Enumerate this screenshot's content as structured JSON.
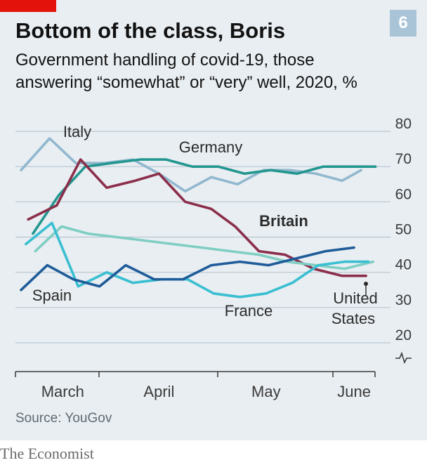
{
  "header": {
    "chart_number": "6",
    "title": "Bottom of the class, Boris",
    "subtitle": "Government handling of covid-19, those answering “somewhat” or “very” well, 2020, %"
  },
  "footer": {
    "source": "Source: YouGov",
    "brand": "The Economist"
  },
  "colors": {
    "accent_red": "#e3120b",
    "badge": "#a9c4d6",
    "background": "#e9eef2"
  },
  "chart_data": {
    "type": "line",
    "title": "Bottom of the class, Boris",
    "subtitle": "Government handling of covid-19, those answering “somewhat” or “very” well, 2020, %",
    "xlabel": "",
    "ylabel": "",
    "x_tick_labels": [
      "March",
      "April",
      "May",
      "June"
    ],
    "y_ticks": [
      20,
      30,
      40,
      50,
      60,
      70,
      80
    ],
    "y_tick_labels": [
      "20",
      "30",
      "40",
      "50",
      "60",
      "70",
      "80"
    ],
    "ylim": [
      20,
      80
    ],
    "x_unit": "week of year",
    "xlim": [
      9,
      24
    ],
    "x_tick_positions": [
      10.75,
      14.8,
      19.3,
      23
    ],
    "grid": true,
    "axis_break": true,
    "legend": "direct labels",
    "series": [
      {
        "name": "Italy",
        "color": "#91b8cf",
        "label_text": "Italy",
        "x": [
          9,
          10.2,
          11.3,
          12.5,
          13.7,
          14.8,
          15.9,
          17.0,
          18.1,
          19.2,
          20.3,
          21.4,
          22.5,
          23.3
        ],
        "y": [
          69,
          78,
          71,
          71,
          72,
          68,
          63,
          67,
          65,
          69,
          69,
          68,
          66,
          69
        ]
      },
      {
        "name": "Germany",
        "color": "#23968f",
        "label_text": "Germany",
        "x": [
          9.5,
          10.6,
          11.7,
          12.8,
          14.0,
          15.1,
          16.2,
          17.3,
          18.4,
          19.5,
          20.6,
          21.7,
          22.8,
          23.9
        ],
        "y": [
          51,
          62,
          70,
          71,
          72,
          72,
          70,
          70,
          68,
          69,
          68,
          70,
          70,
          70
        ]
      },
      {
        "name": "Britain",
        "color": "#8b2e4a",
        "label_text": "Britain",
        "x": [
          9.3,
          10.5,
          11.5,
          12.6,
          13.8,
          14.8,
          15.9,
          17.0,
          18.0,
          19.0,
          20.1,
          21.3,
          22.5,
          23.5
        ],
        "y": [
          55,
          59,
          72,
          64,
          66,
          68,
          60,
          58,
          53,
          46,
          45,
          41,
          39,
          39
        ]
      },
      {
        "name": "",
        "color": "#7fcec3",
        "x": [
          9.6,
          10.7,
          11.8,
          13.0,
          14.2,
          15.4,
          16.6,
          17.8,
          19.0,
          20.2,
          21.4,
          22.6,
          23.8
        ],
        "y": [
          46,
          53,
          51,
          50,
          49,
          48,
          47,
          46,
          45,
          43,
          42,
          41,
          43
        ]
      },
      {
        "name": "France",
        "color": "#39bfd1",
        "label_text": "France",
        "x": [
          9.2,
          10.3,
          11.4,
          12.6,
          13.7,
          14.9,
          16.0,
          17.1,
          18.2,
          19.3,
          20.4,
          21.5,
          22.6,
          23.6
        ],
        "y": [
          48,
          54,
          36,
          40,
          37,
          38,
          38,
          34,
          33,
          34,
          37,
          42,
          43,
          43
        ]
      },
      {
        "name": "Spain",
        "color": "#1f5c99",
        "label_text": "Spain",
        "x": [
          9,
          10.1,
          11.2,
          12.3,
          13.4,
          14.6,
          15.8,
          17.0,
          18.2,
          19.4,
          20.6,
          21.8,
          23.0
        ],
        "y": [
          35,
          42,
          38,
          36,
          42,
          38,
          38,
          42,
          43,
          42,
          44,
          46,
          47
        ]
      }
    ],
    "annotations": [
      {
        "text": "United States"
      }
    ]
  }
}
